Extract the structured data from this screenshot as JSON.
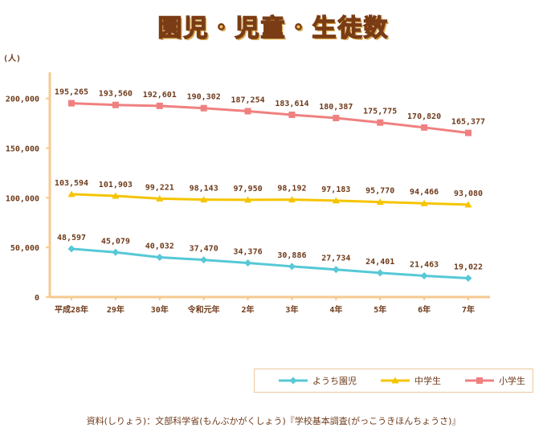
{
  "title": "園児・児童・生徒数",
  "source": "資料(しりょう)：文部科学省(もんぶかがくしょう)『学校基本調査(がっこうきほんちょうさ)』",
  "chart_data": {
    "type": "line",
    "unit_label": "(人)",
    "categories": [
      "平成28年",
      "29年",
      "30年",
      "令和元年",
      "2年",
      "3年",
      "4年",
      "5年",
      "6年",
      "7年"
    ],
    "yticks": [
      "0",
      "50,000",
      "100,000",
      "150,000",
      "200,000"
    ],
    "ylim": [
      0,
      220000
    ],
    "grid": false,
    "legend_position": "bottom-right",
    "series": [
      {
        "name": "ようち園児",
        "color": "#56c8d6",
        "marker": "diamond",
        "values": [
          48597,
          45079,
          40032,
          37470,
          34376,
          30886,
          27734,
          24401,
          21463,
          19022
        ],
        "labels": [
          "48,597",
          "45,079",
          "40,032",
          "37,470",
          "34,376",
          "30,886",
          "27,734",
          "24,401",
          "21,463",
          "19,022"
        ]
      },
      {
        "name": "中学生",
        "color": "#f5c400",
        "marker": "triangle",
        "values": [
          103594,
          101903,
          99221,
          98143,
          97950,
          98192,
          97183,
          95770,
          94466,
          93080
        ],
        "labels": [
          "103,594",
          "101,903",
          "99,221",
          "98,143",
          "97,950",
          "98,192",
          "97,183",
          "95,770",
          "94,466",
          "93,080"
        ]
      },
      {
        "name": "小学生",
        "color": "#f08080",
        "marker": "square",
        "values": [
          195265,
          193560,
          192601,
          190302,
          187254,
          183614,
          180387,
          175775,
          170820,
          165377
        ],
        "labels": [
          "195,265",
          "193,560",
          "192,601",
          "190,302",
          "187,254",
          "183,614",
          "180,387",
          "175,775",
          "170,820",
          "165,377"
        ]
      }
    ]
  }
}
